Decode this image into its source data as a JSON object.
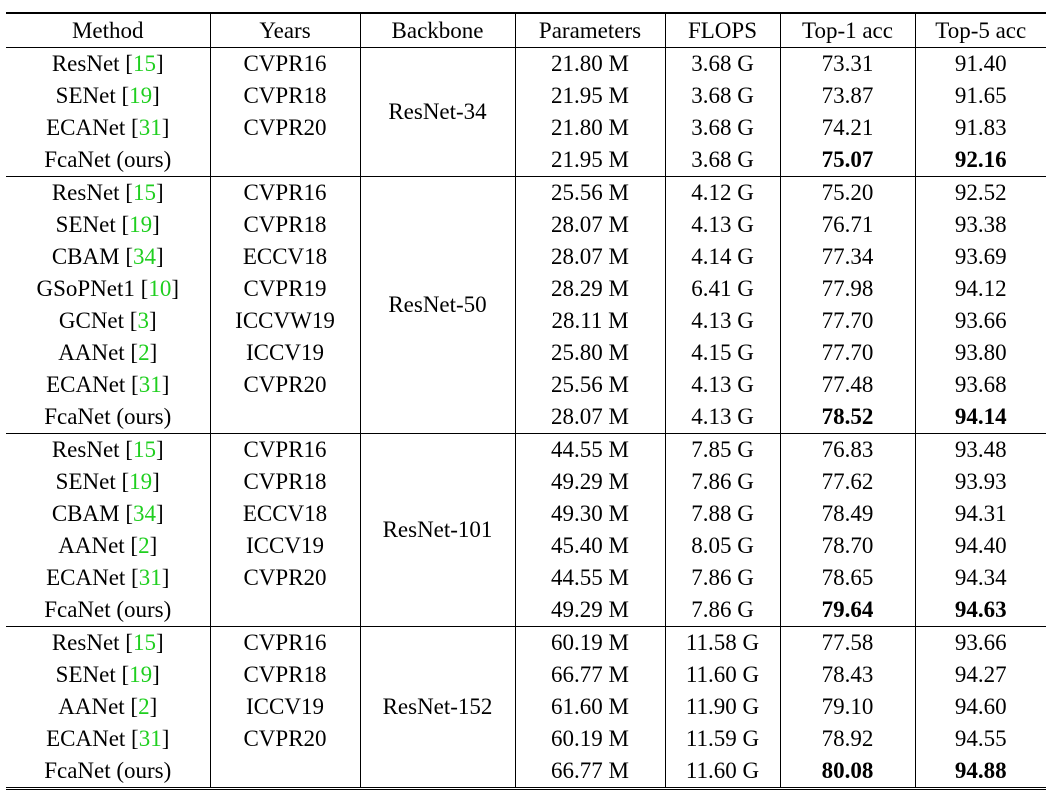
{
  "table": {
    "header": [
      "Method",
      "Years",
      "Backbone",
      "Parameters",
      "FLOPS",
      "Top-1 acc",
      "Top-5 acc"
    ],
    "groups": [
      {
        "backbone": "ResNet-34",
        "rows": [
          {
            "method": [
              "ResNet [",
              "15",
              "]"
            ],
            "year": "CVPR16",
            "params": "21.80 M",
            "flops": "3.68 G",
            "top1": "73.31",
            "top5": "91.40"
          },
          {
            "method": [
              "SENet [",
              "19",
              "]"
            ],
            "year": "CVPR18",
            "params": "21.95 M",
            "flops": "3.68 G",
            "top1": "73.87",
            "top5": "91.65"
          },
          {
            "method": [
              "ECANet [",
              "31",
              "]"
            ],
            "year": "CVPR20",
            "params": "21.80 M",
            "flops": "3.68 G",
            "top1": "74.21",
            "top5": "91.83"
          },
          {
            "method": [
              "FcaNet (ours)"
            ],
            "year": "",
            "params": "21.95 M",
            "flops": "3.68 G",
            "top1": "75.07",
            "top5": "92.16",
            "best": true
          }
        ]
      },
      {
        "backbone": "ResNet-50",
        "rows": [
          {
            "method": [
              "ResNet [",
              "15",
              "]"
            ],
            "year": "CVPR16",
            "params": "25.56 M",
            "flops": "4.12 G",
            "top1": "75.20",
            "top5": "92.52"
          },
          {
            "method": [
              "SENet [",
              "19",
              "]"
            ],
            "year": "CVPR18",
            "params": "28.07 M",
            "flops": "4.13 G",
            "top1": "76.71",
            "top5": "93.38"
          },
          {
            "method": [
              "CBAM [",
              "34",
              "]"
            ],
            "year": "ECCV18",
            "params": "28.07 M",
            "flops": "4.14 G",
            "top1": "77.34",
            "top5": "93.69"
          },
          {
            "method": [
              "GSoPNet1 [",
              "10",
              "]"
            ],
            "year": "CVPR19",
            "params": "28.29 M",
            "flops": "6.41 G",
            "top1": "77.98",
            "top5": "94.12"
          },
          {
            "method": [
              "GCNet [",
              "3",
              "]"
            ],
            "year": "ICCVW19",
            "params": "28.11 M",
            "flops": "4.13 G",
            "top1": "77.70",
            "top5": "93.66"
          },
          {
            "method": [
              "AANet [",
              "2",
              "]"
            ],
            "year": "ICCV19",
            "params": "25.80 M",
            "flops": "4.15 G",
            "top1": "77.70",
            "top5": "93.80"
          },
          {
            "method": [
              "ECANet [",
              "31",
              "]"
            ],
            "year": "CVPR20",
            "params": "25.56 M",
            "flops": "4.13 G",
            "top1": "77.48",
            "top5": "93.68"
          },
          {
            "method": [
              "FcaNet (ours)"
            ],
            "year": "",
            "params": "28.07 M",
            "flops": "4.13 G",
            "top1": "78.52",
            "top5": "94.14",
            "best": true
          }
        ]
      },
      {
        "backbone": "ResNet-101",
        "rows": [
          {
            "method": [
              "ResNet [",
              "15",
              "]"
            ],
            "year": "CVPR16",
            "params": "44.55 M",
            "flops": "7.85 G",
            "top1": "76.83",
            "top5": "93.48"
          },
          {
            "method": [
              "SENet [",
              "19",
              "]"
            ],
            "year": "CVPR18",
            "params": "49.29 M",
            "flops": "7.86 G",
            "top1": "77.62",
            "top5": "93.93"
          },
          {
            "method": [
              "CBAM [",
              "34",
              "]"
            ],
            "year": "ECCV18",
            "params": "49.30 M",
            "flops": "7.88 G",
            "top1": "78.49",
            "top5": "94.31"
          },
          {
            "method": [
              "AANet [",
              "2",
              "]"
            ],
            "year": "ICCV19",
            "params": "45.40 M",
            "flops": "8.05 G",
            "top1": "78.70",
            "top5": "94.40"
          },
          {
            "method": [
              "ECANet [",
              "31",
              "]"
            ],
            "year": "CVPR20",
            "params": "44.55 M",
            "flops": "7.86 G",
            "top1": "78.65",
            "top5": "94.34"
          },
          {
            "method": [
              "FcaNet (ours)"
            ],
            "year": "",
            "params": "49.29 M",
            "flops": "7.86 G",
            "top1": "79.64",
            "top5": "94.63",
            "best": true
          }
        ]
      },
      {
        "backbone": "ResNet-152",
        "rows": [
          {
            "method": [
              "ResNet [",
              "15",
              "]"
            ],
            "year": "CVPR16",
            "params": "60.19 M",
            "flops": "11.58 G",
            "top1": "77.58",
            "top5": "93.66"
          },
          {
            "method": [
              "SENet [",
              "19",
              "]"
            ],
            "year": "CVPR18",
            "params": "66.77 M",
            "flops": "11.60 G",
            "top1": "78.43",
            "top5": "94.27"
          },
          {
            "method": [
              "AANet [",
              "2",
              "]"
            ],
            "year": "ICCV19",
            "params": "61.60 M",
            "flops": "11.90 G",
            "top1": "79.10",
            "top5": "94.60"
          },
          {
            "method": [
              "ECANet [",
              "31",
              "]"
            ],
            "year": "CVPR20",
            "params": "60.19 M",
            "flops": "11.59 G",
            "top1": "78.92",
            "top5": "94.55"
          },
          {
            "method": [
              "FcaNet (ours)"
            ],
            "year": "",
            "params": "66.77 M",
            "flops": "11.60 G",
            "top1": "80.08",
            "top5": "94.88",
            "best": true
          }
        ]
      }
    ]
  }
}
